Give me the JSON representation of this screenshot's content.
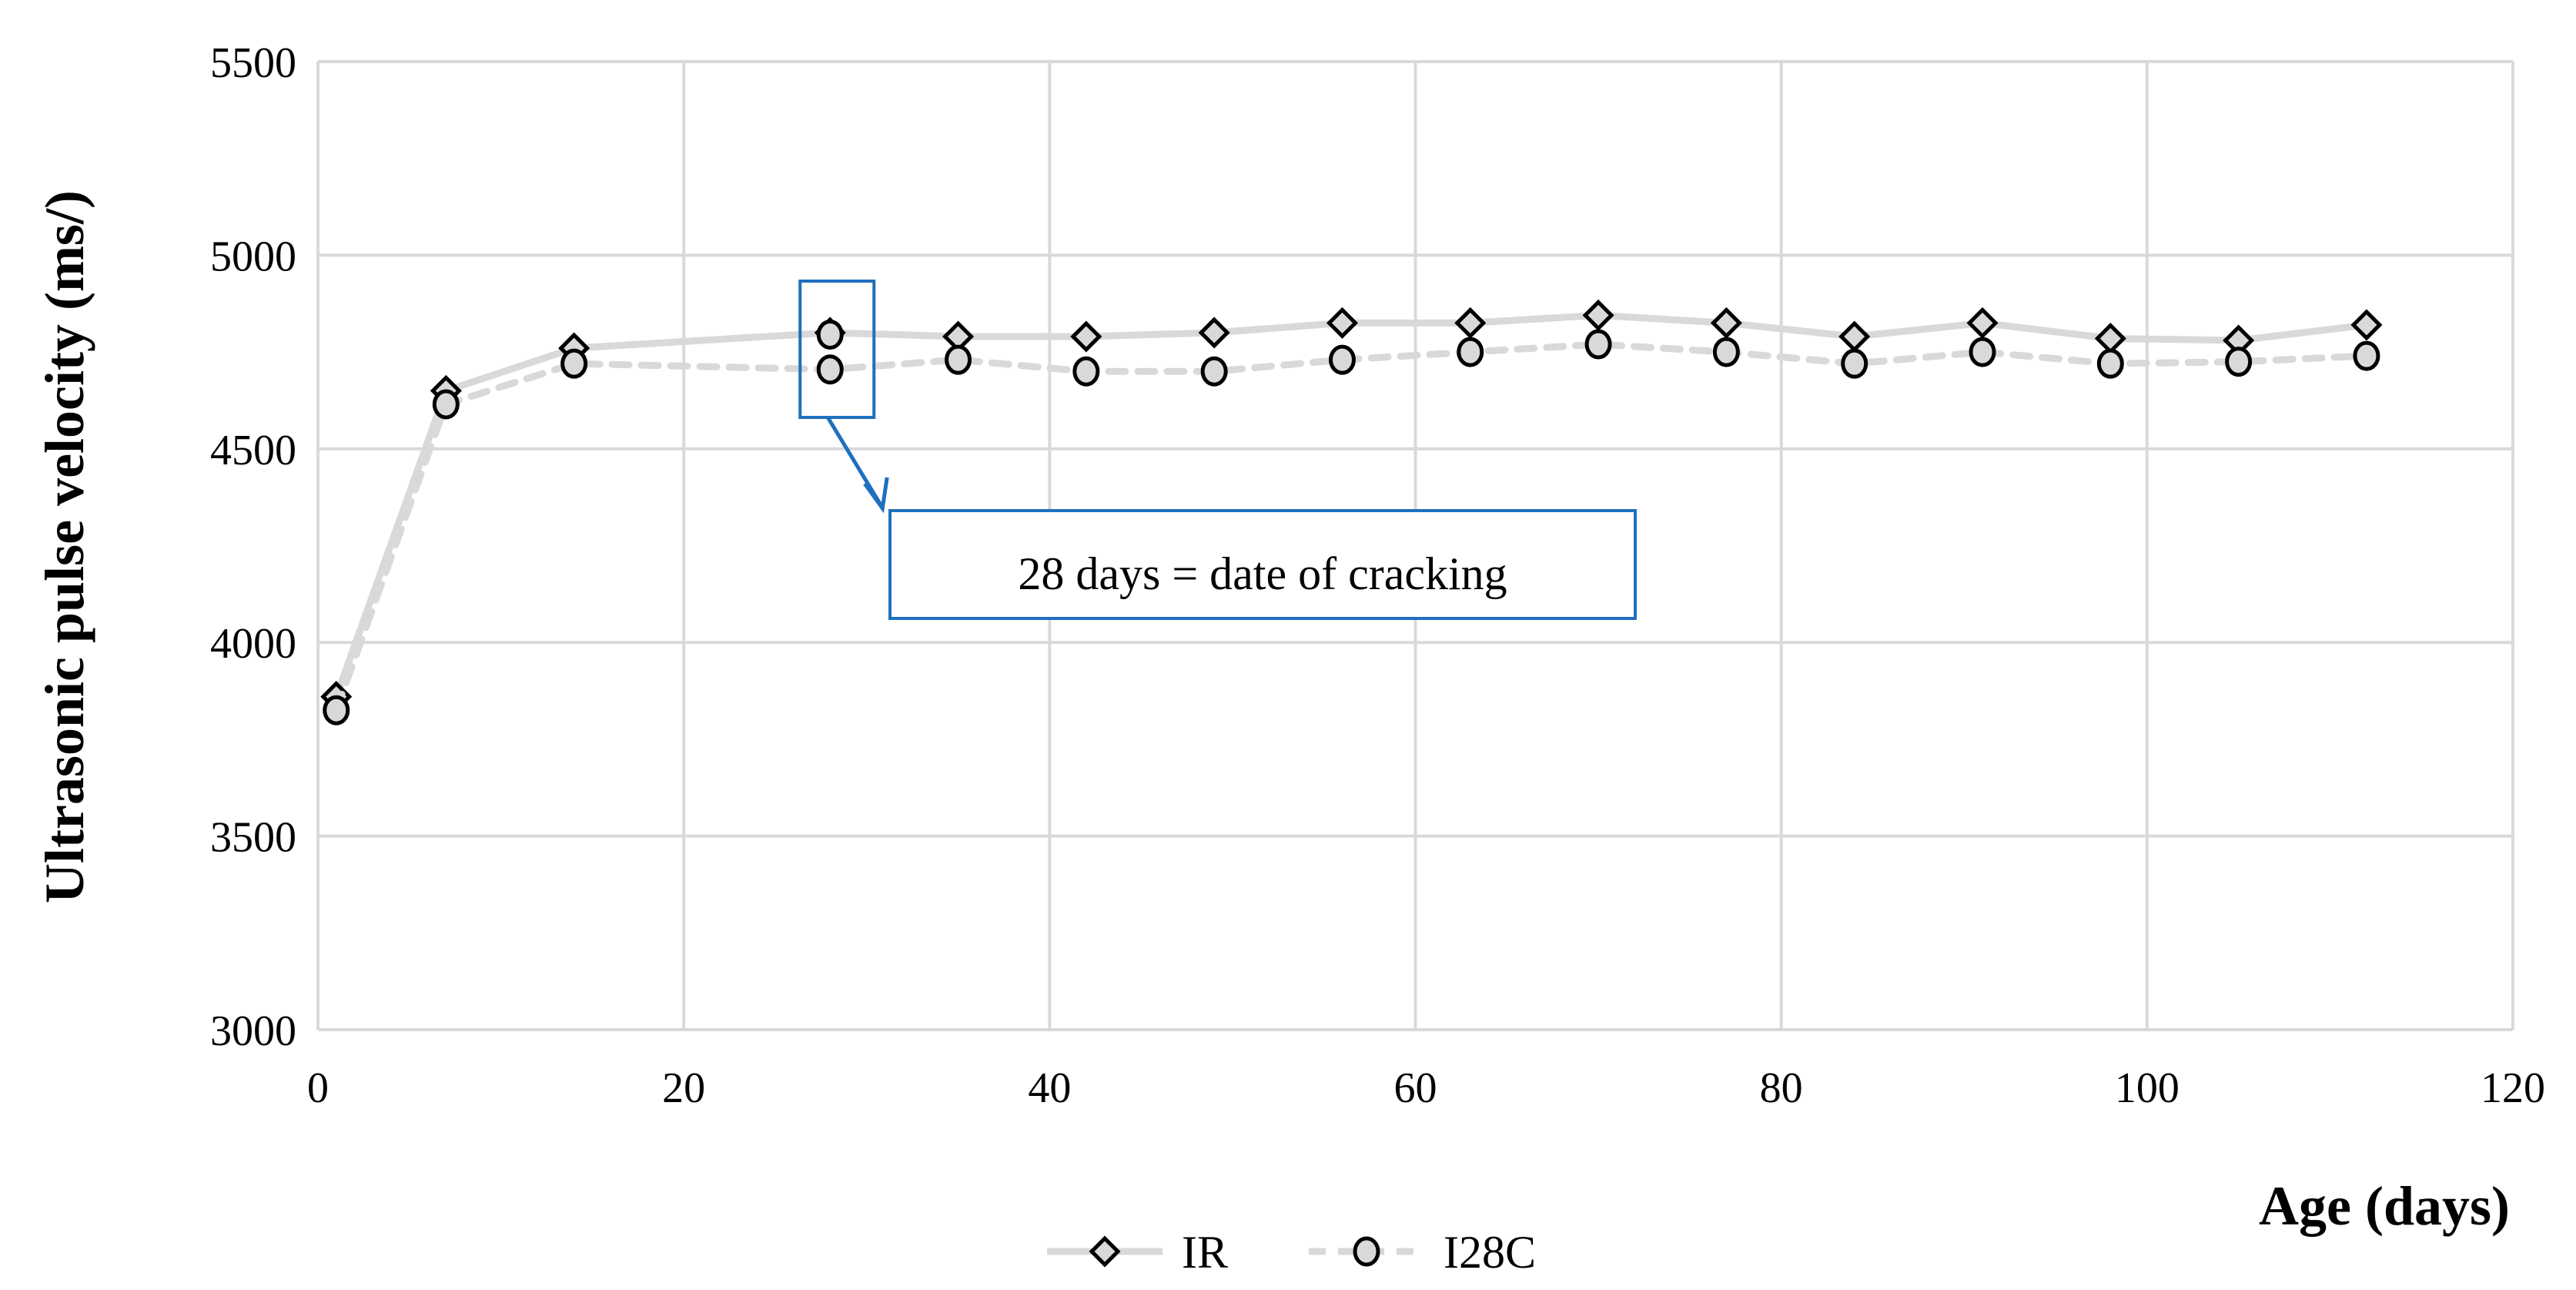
{
  "chart_data": {
    "type": "line",
    "title": "",
    "xlabel": "Age (days)",
    "ylabel": "Ultrasonic pulse velocity (ms/)",
    "xlim": [
      0,
      120
    ],
    "ylim": [
      3000,
      5500
    ],
    "xticks": [
      0,
      20,
      40,
      60,
      80,
      100,
      120
    ],
    "yticks": [
      3000,
      3500,
      4000,
      4500,
      5000,
      5500
    ],
    "grid": true,
    "legend_position": "bottom",
    "series": [
      {
        "name": "IR",
        "marker": "diamond",
        "line_style": "solid",
        "color": "#d9d9d9",
        "x": [
          1,
          7,
          14,
          28,
          35,
          42,
          49,
          56,
          63,
          70,
          77,
          84,
          91,
          98,
          105,
          112
        ],
        "y": [
          3860,
          4650,
          4760,
          4800,
          4790,
          4790,
          4800,
          4825,
          4825,
          4845,
          4825,
          4790,
          4825,
          4785,
          4780,
          4820
        ]
      },
      {
        "name": "I28C",
        "marker": "circle",
        "line_style": "dashed",
        "color": "#d9d9d9",
        "x": [
          1,
          7,
          14,
          28,
          28,
          35,
          42,
          49,
          56,
          63,
          70,
          77,
          84,
          91,
          98,
          105,
          112
        ],
        "y": [
          3825,
          4615,
          4720,
          4795,
          4705,
          4730,
          4700,
          4700,
          4730,
          4750,
          4770,
          4750,
          4720,
          4750,
          4720,
          4725,
          4740
        ]
      }
    ],
    "annotation": {
      "text": "28 days = date of cracking",
      "color": "#1f6fbf"
    }
  }
}
